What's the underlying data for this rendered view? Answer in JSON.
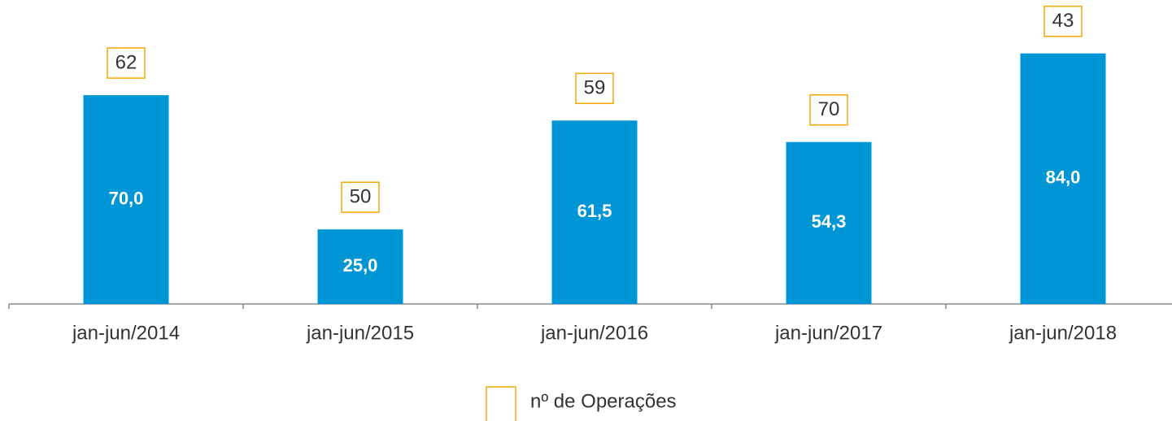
{
  "chart_data": {
    "type": "bar",
    "categories": [
      "jan-jun/2014",
      "jan-jun/2015",
      "jan-jun/2016",
      "jan-jun/2017",
      "jan-jun/2018"
    ],
    "series": [
      {
        "color": "#0096d6",
        "values": [
          70.0,
          25.0,
          61.5,
          54.3,
          84.0
        ],
        "value_labels": [
          "70,0",
          "25,0",
          "61,5",
          "54,3",
          "84,0"
        ]
      },
      {
        "name": "nº de Operações",
        "color": "#f5a800",
        "values": [
          62,
          50,
          59,
          70,
          43
        ]
      }
    ],
    "ylim": [
      0,
      100
    ]
  }
}
